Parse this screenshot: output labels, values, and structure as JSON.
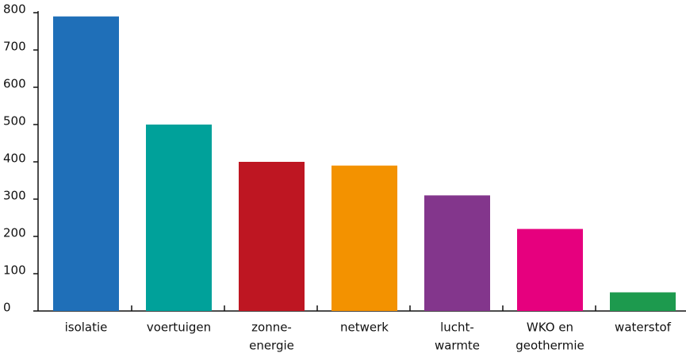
{
  "chart_data": {
    "type": "bar",
    "categories": [
      [
        "isolatie"
      ],
      [
        "voertuigen"
      ],
      [
        "zonne-",
        "energie"
      ],
      [
        "netwerk"
      ],
      [
        "lucht-",
        "warmte"
      ],
      [
        "WKO en",
        "geothermie"
      ],
      [
        "waterstof"
      ]
    ],
    "values": [
      790,
      500,
      400,
      390,
      310,
      220,
      50
    ],
    "colors": [
      "#1f6fb8",
      "#00a19a",
      "#be1622",
      "#f39200",
      "#83368c",
      "#e6007e",
      "#1d9a4e"
    ],
    "ylim": [
      0,
      800
    ],
    "yticks": [
      0,
      100,
      200,
      300,
      400,
      500,
      600,
      700,
      800
    ],
    "grid": false
  }
}
